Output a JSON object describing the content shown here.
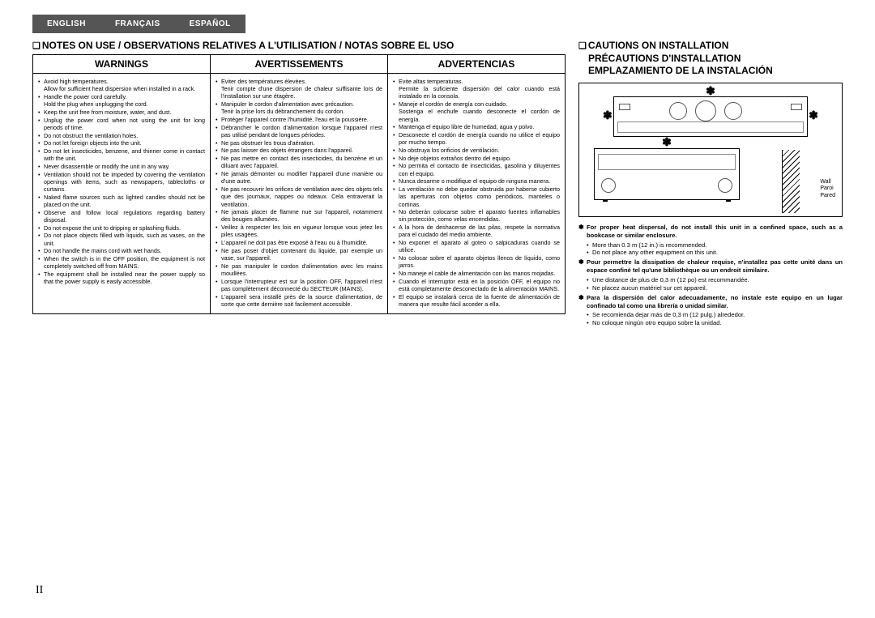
{
  "tabs": {
    "en": "ENGLISH",
    "fr": "FRANÇAIS",
    "es": "ESPAÑOL"
  },
  "notes_title": "NOTES ON USE / OBSERVATIONS RELATIVES A L'UTILISATION / NOTAS SOBRE EL USO",
  "headers": {
    "en": "WARNINGS",
    "fr": "AVERTISSEMENTS",
    "es": "ADVERTENCIAS"
  },
  "warnings_en": [
    {
      "t": "Avoid high temperatures.",
      "s": "Allow for sufficient heat dispersion when installed in a rack."
    },
    {
      "t": "Handle the power cord carefully.",
      "s": "Hold the plug when unplugging the cord."
    },
    {
      "t": "Keep the unit free from moisture, water, and dust."
    },
    {
      "t": "Unplug the power cord when not using the unit for long periods of time."
    },
    {
      "t": "Do not obstruct the ventilation holes."
    },
    {
      "t": "Do not let foreign objects into the unit."
    },
    {
      "t": "Do not let insecticides, benzene, and thinner come in contact with the unit."
    },
    {
      "t": "Never disassemble or modify the unit in any way."
    },
    {
      "t": "Ventilation should not be impeded by covering the ventilation openings with items, such as newspapers, tablecloths or curtains."
    },
    {
      "t": "Naked flame sources such as lighted candles should not be placed on the unit."
    },
    {
      "t": "Observe and follow local regulations regarding battery disposal."
    },
    {
      "t": "Do not expose the unit to dripping or splashing fluids."
    },
    {
      "t": "Do not place objects filled with liquids, such as vases, on the unit."
    },
    {
      "t": "Do not handle the mains cord with wet hands."
    },
    {
      "t": "When the switch is in the OFF position, the equipment is not completely switched off from MAINS."
    },
    {
      "t": "The equipment shall be installed near the power supply so that the power supply is easily accessible."
    }
  ],
  "warnings_fr": [
    {
      "t": "Eviter des températures élevées.",
      "s": "Tenir compte d'une dispersion de chaleur suffisante lors de l'installation sur une étagère."
    },
    {
      "t": "Manipuler le cordon d'alimentation avec précaution.",
      "s": "Tenir la prise lors du débranchement du cordon."
    },
    {
      "t": "Protéger l'appareil contre l'humidité, l'eau et la poussière."
    },
    {
      "t": "Débrancher le cordon d'alimentation lorsque l'appareil n'est pas utilisé pendant de longues périodes."
    },
    {
      "t": "Ne pas obstruer les trous d'aération."
    },
    {
      "t": "Ne pas laisser des objets étrangers dans l'appareil."
    },
    {
      "t": "Ne pas mettre en contact des insecticides, du benzène et un diluant avec l'appareil."
    },
    {
      "t": "Ne jamais démonter ou modifier l'appareil d'une manière ou d'une autre."
    },
    {
      "t": "Ne pas recouvrir les orifices de ventilation avec des objets tels que des journaux, nappes ou rideaux. Cela entraverait la ventilation."
    },
    {
      "t": "Ne jamais placer de flamme nue sur l'appareil, notamment des bougies allumées."
    },
    {
      "t": "Veillez à respecter les lois en vigueur lorsque vous jetez les piles usagées."
    },
    {
      "t": "L'appareil ne doit pas être exposé à l'eau ou à l'humidité."
    },
    {
      "t": "Ne pas poser d'objet contenant du liquide, par exemple un vase, sur l'appareil."
    },
    {
      "t": "Ne pas manipuler le cordon d'alimentation avec les mains mouillées."
    },
    {
      "t": "Lorsque l'interrupteur est sur la position OFF, l'appareil n'est pas complètement déconnecté du SECTEUR (MAINS)."
    },
    {
      "t": "L'appareil sera installé près de la source d'alimentation, de sorte que cette dernière soit facilement accessible."
    }
  ],
  "warnings_es": [
    {
      "t": "Evite altas temperaturas.",
      "s": "Permite la suficiente dispersión del calor cuando está instalado en la consola."
    },
    {
      "t": "Maneje el cordón de energía con cuidado.",
      "s": "Sostenga el enchufe cuando desconecte el cordón de energía."
    },
    {
      "t": "Mantenga el equipo libre de humedad, agua y polvo."
    },
    {
      "t": "Desconecte el cordón de energía cuando no utilice el equipo por mucho tiempo."
    },
    {
      "t": "No obstruya los orificios de ventilación."
    },
    {
      "t": "No deje objetos extraños dentro del equipo."
    },
    {
      "t": "No permita el contacto de insecticidas, gasolina y diluyentes con el equipo."
    },
    {
      "t": "Nunca desarme o modifique el equipo de ninguna manera."
    },
    {
      "t": "La ventilación no debe quedar obstruida por haberse cubierto las aperturas con objetos como periódicos, manteles o cortinas."
    },
    {
      "t": "No deberán colocarse sobre el aparato fuentes inflamables sin protección, como velas encendidas."
    },
    {
      "t": "A la hora de deshacerse de las pilas, respete la normativa para el cuidado del medio ambiente."
    },
    {
      "t": "No exponer el aparato al goteo o salpicaduras cuando se utilice."
    },
    {
      "t": "No colocar sobre el aparato objetos llenos de líquido, como jarros."
    },
    {
      "t": "No maneje el cable de alimentación con las manos mojadas."
    },
    {
      "t": "Cuando el interruptor está en la posición OFF, el equipo no está completamente desconectado de la alimentación MAINS."
    },
    {
      "t": "El equipo se instalará cerca de la fuente de alimentación de manera que resulte fácil acceder a ella."
    }
  ],
  "cautions_title_en": "CAUTIONS ON INSTALLATION",
  "cautions_title_fr": "PRÉCAUTIONS D'INSTALLATION",
  "cautions_title_es": "EMPLAZAMIENTO DE LA INSTALACIÓN",
  "wall_label": {
    "en": "Wall",
    "fr": "Paroi",
    "es": "Pared"
  },
  "cautions": {
    "en_bold": "For proper heat dispersal, do not install this unit in a confined space, such as a bookcase or similar enclosure.",
    "en_sub": [
      "More than 0.3 m (12 in.) is recommended.",
      "Do not place any other equipment on this unit."
    ],
    "fr_bold": "Pour permettre la dissipation de chaleur requise, n'installez pas cette unité dans un espace confiné tel qu'une bibliothèque ou un endroit similaire.",
    "fr_sub": [
      "Une distance de plus de 0,3 m (12 po) est recommandée.",
      "Ne placez aucun matériel sur cet appareil."
    ],
    "es_bold": "Para la dispersión del calor adecuadamente, no instale este equipo en un lugar confinado tal como una librería o unidad similar.",
    "es_sub": [
      "Se recomienda dejar más de 0,3 m (12 pulg.) alrededor.",
      "No coloque ningún otro equipo sobre la unidad."
    ]
  },
  "page_number": "II"
}
